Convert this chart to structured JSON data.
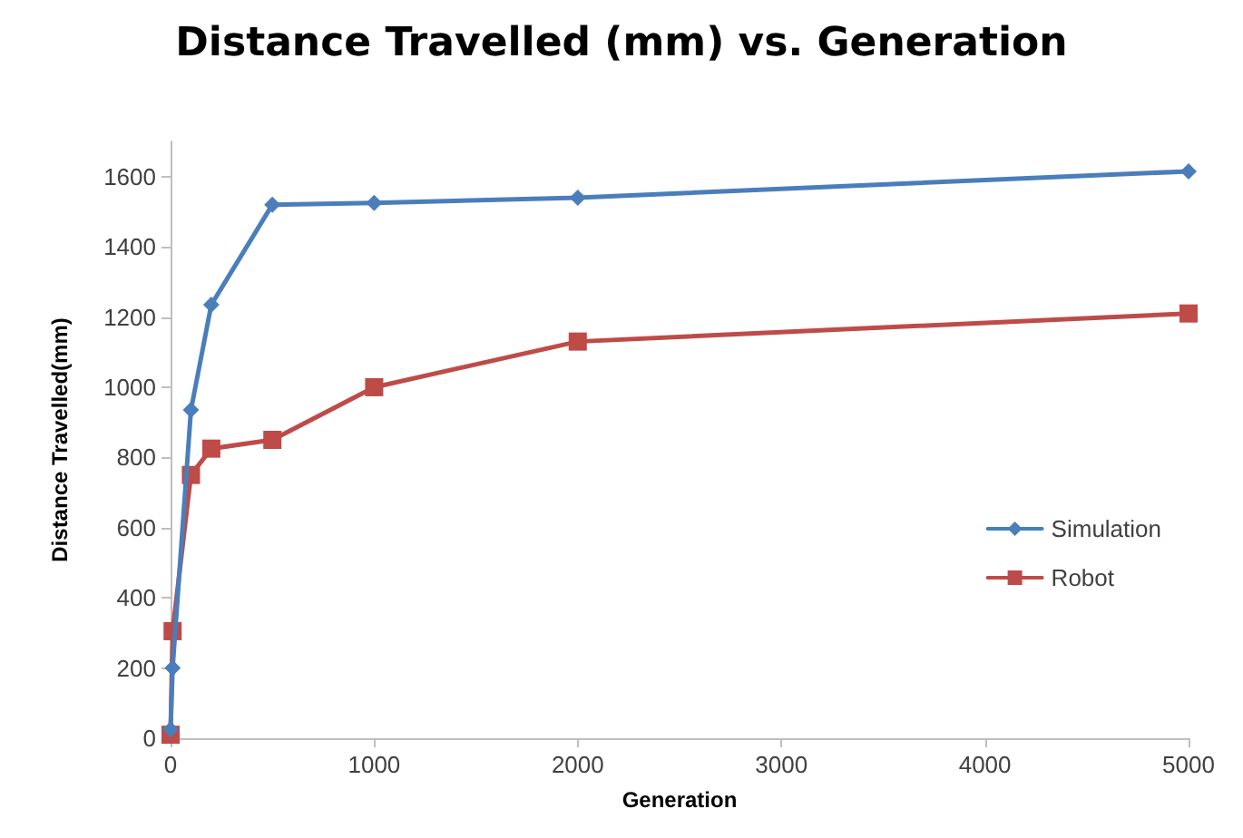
{
  "chart_data": {
    "type": "line",
    "title": "Distance Travelled (mm) vs. Generation",
    "xlabel": "Generation",
    "ylabel": "Distance Travelled(mm)",
    "x": [
      0,
      10,
      100,
      200,
      500,
      1000,
      2000,
      5000
    ],
    "series": [
      {
        "name": "Simulation",
        "color": "#4a7ebb",
        "marker": "diamond",
        "values": [
          25,
          200,
          935,
          1235,
          1520,
          1525,
          1540,
          1615
        ]
      },
      {
        "name": "Robot",
        "color": "#be4b48",
        "marker": "square",
        "values": [
          10,
          305,
          750,
          825,
          850,
          1000,
          1130,
          1210
        ]
      }
    ],
    "xlim": [
      0,
      5000
    ],
    "xticks": [
      0,
      1000,
      2000,
      3000,
      4000,
      5000
    ],
    "ylim": [
      0,
      1700
    ],
    "yticks": [
      0,
      200,
      400,
      600,
      800,
      1000,
      1200,
      1400,
      1600
    ],
    "grid": false,
    "legend": "right"
  }
}
